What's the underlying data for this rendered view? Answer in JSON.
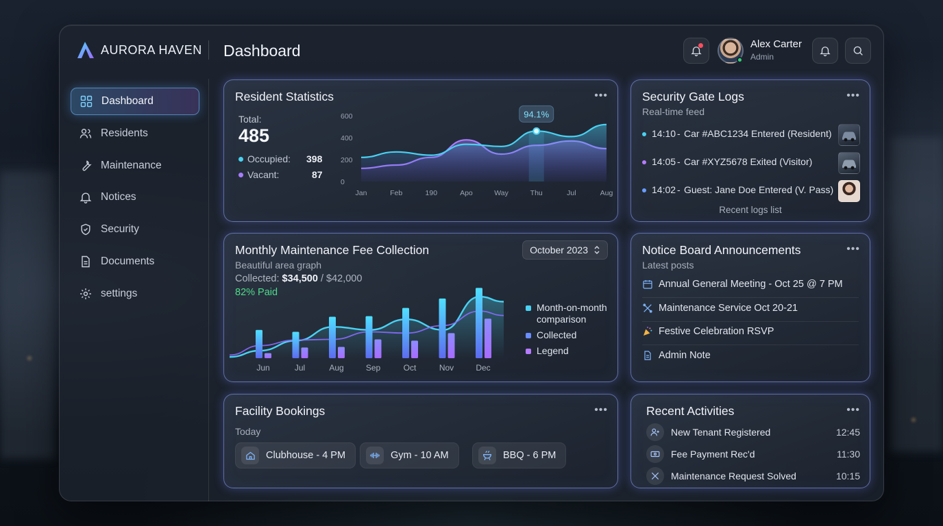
{
  "app": {
    "brand": "AURORA HAVEN",
    "page_title": "Dashboard"
  },
  "user": {
    "name": "Alex Carter",
    "role": "Admin"
  },
  "sidebar": {
    "items": [
      {
        "label": "Dashboard",
        "icon": "grid-icon",
        "active": true
      },
      {
        "label": "Residents",
        "icon": "users-icon"
      },
      {
        "label": "Maintenance",
        "icon": "wrench-icon"
      },
      {
        "label": "Notices",
        "icon": "bell-icon"
      },
      {
        "label": "Security",
        "icon": "shield-icon"
      },
      {
        "label": "Documents",
        "icon": "document-icon"
      },
      {
        "label": "settings",
        "icon": "gear-icon"
      }
    ]
  },
  "resident_stats": {
    "title": "Resident Statistics",
    "more": "•••",
    "total_label": "Total:",
    "total_value": "485",
    "occupied_label": "Occupied:",
    "occupied_value": "398",
    "vacant_label": "Vacant:",
    "vacant_value": "87",
    "highlight_label": "94.1%",
    "colors": {
      "cyan": "#49d2f2",
      "purple": "#a77dff"
    }
  },
  "security_logs": {
    "title": "Security Gate Logs",
    "subtitle": "Real-time feed",
    "more": "•••",
    "entries": [
      {
        "time": "14:10",
        "text": "Car #ABC1234 Entered (Resident)",
        "dot": "#49d2f2",
        "thumb": "car-thumbnail"
      },
      {
        "time": "14:05",
        "text": "Car #XYZ5678 Exited (Visitor)",
        "dot": "#b57cff",
        "thumb": "car-thumbnail"
      },
      {
        "time": "14:02",
        "text": "Guest: Jane Doe Entered (V. Pass)",
        "dot": "#6a9dff",
        "thumb": "person-thumbnail"
      }
    ],
    "footer": "Recent logs list"
  },
  "maintenance": {
    "title": "Monthly Maintenance Fee Collection",
    "subtitle": "Beautiful area graph",
    "collected_prefix": "Collected:",
    "collected_value": "$34,500",
    "collected_total": "/ $42,000",
    "paid": "82% Paid",
    "period": "October 2023",
    "legend": [
      {
        "label": "Month-on-month comparison",
        "color": "#49d2f2"
      },
      {
        "label": "Collected",
        "color": "#6a8dff"
      },
      {
        "label": "Legend",
        "color": "#b57cff"
      }
    ]
  },
  "notice_board": {
    "title": "Notice Board Announcements",
    "subtitle": "Latest posts",
    "more": "•••",
    "items": [
      {
        "text": "Annual General Meeting - Oct 25 @ 7 PM",
        "icon": "calendar-icon"
      },
      {
        "text": "Maintenance Service Oct 20-21",
        "icon": "tools-icon"
      },
      {
        "text": "Festive Celebration RSVP",
        "icon": "party-icon"
      },
      {
        "text": "Admin Note",
        "icon": "document-icon"
      }
    ]
  },
  "facility": {
    "title": "Facility Bookings",
    "subtitle": "Today",
    "more": "•••",
    "bookings": [
      {
        "label": "Clubhouse - 4 PM",
        "icon": "home-icon"
      },
      {
        "label": "Gym - 10 AM",
        "icon": "dumbbell-icon"
      },
      {
        "label": "BBQ - 6 PM",
        "icon": "grill-icon"
      }
    ]
  },
  "activities": {
    "title": "Recent Activities",
    "more": "•••",
    "items": [
      {
        "text": "New Tenant Registered",
        "time": "12:45",
        "icon": "user-add-icon"
      },
      {
        "text": "Fee Payment Rec'd",
        "time": "11:30",
        "icon": "cash-icon"
      },
      {
        "text": "Maintenance Request Solved",
        "time": "10:15",
        "icon": "tools-icon"
      }
    ]
  },
  "chart_data": [
    {
      "type": "area",
      "title": "Resident Statistics",
      "categories": [
        "Jan",
        "Feb",
        "190",
        "Apo",
        "Way",
        "Thu",
        "Jul",
        "Aug"
      ],
      "ylim": [
        0,
        600
      ],
      "yticks": [
        0,
        200,
        400,
        600
      ],
      "series": [
        {
          "values": [
            220,
            270,
            240,
            340,
            320,
            460,
            410,
            520
          ]
        },
        {
          "values": [
            120,
            150,
            220,
            380,
            250,
            330,
            370,
            300
          ]
        }
      ],
      "annotation": {
        "category": "Thu",
        "label": "94.1%"
      },
      "grid": false
    },
    {
      "type": "bar",
      "title": "Monthly Maintenance Fee Collection",
      "categories": [
        "Jun",
        "Jul",
        "Aug",
        "Sep",
        "Oct",
        "Nov",
        "Dec"
      ],
      "series": [
        {
          "name": "Month-on-month comparison",
          "values": [
            45,
            42,
            66,
            67,
            80,
            95,
            112
          ]
        },
        {
          "name": "Legend",
          "values": [
            8,
            17,
            18,
            30,
            28,
            40,
            63
          ]
        }
      ],
      "line": [
        12,
        28,
        50,
        45,
        62,
        45,
        98
      ],
      "grid": false
    }
  ]
}
